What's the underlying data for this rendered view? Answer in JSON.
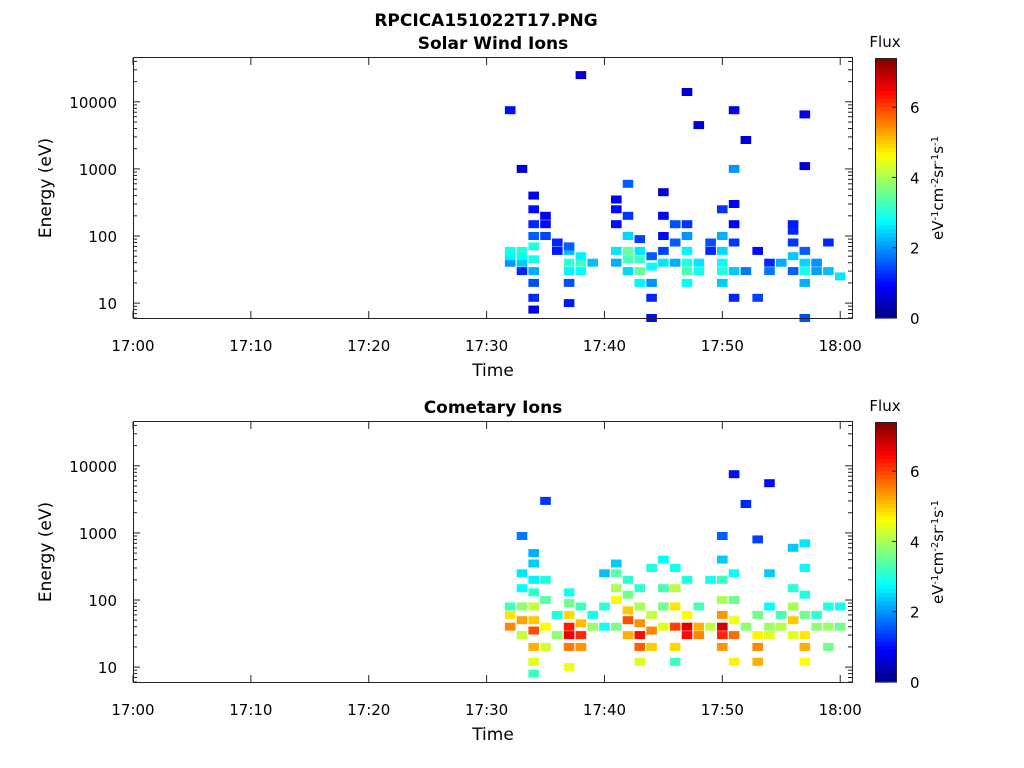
{
  "figure": {
    "title": "RPCICA151022T17.PNG"
  },
  "chart_data": [
    {
      "type": "heatmap",
      "title": "Solar Wind Ions",
      "xlabel": "Time",
      "ylabel": "Energy (eV)",
      "x_ticks": [
        "17:00",
        "17:10",
        "17:20",
        "17:30",
        "17:40",
        "17:50",
        "18:00"
      ],
      "xlim": [
        "17:00",
        "18:01"
      ],
      "y_scale": "log",
      "y_ticks": [
        10,
        100,
        1000,
        10000
      ],
      "ylim": [
        6,
        45000
      ],
      "colorbar": {
        "title": "Flux",
        "label": "eV-1cm-2sr-1s-1",
        "ticks": [
          0,
          2,
          4,
          6
        ],
        "range": [
          0,
          7.4
        ],
        "colormap": "jet"
      },
      "cells": [
        [
          "17:32",
          40,
          2.0
        ],
        [
          "17:32",
          50,
          2.7
        ],
        [
          "17:32",
          60,
          2.9
        ],
        [
          "17:32",
          7500,
          1.0
        ],
        [
          "17:33",
          30,
          1.2
        ],
        [
          "17:33",
          40,
          2.4
        ],
        [
          "17:33",
          50,
          2.8
        ],
        [
          "17:33",
          60,
          3.0
        ],
        [
          "17:33",
          1000,
          0.6
        ],
        [
          "17:34",
          8,
          0.7
        ],
        [
          "17:34",
          12,
          1.2
        ],
        [
          "17:34",
          20,
          1.5
        ],
        [
          "17:34",
          30,
          2.2
        ],
        [
          "17:34",
          45,
          2.9
        ],
        [
          "17:34",
          70,
          3.0
        ],
        [
          "17:34",
          100,
          1.6
        ],
        [
          "17:34",
          150,
          1.2
        ],
        [
          "17:34",
          250,
          1.0
        ],
        [
          "17:34",
          400,
          0.8
        ],
        [
          "17:35",
          100,
          1.4
        ],
        [
          "17:35",
          150,
          1.0
        ],
        [
          "17:35",
          200,
          0.9
        ],
        [
          "17:36",
          60,
          1.1
        ],
        [
          "17:36",
          80,
          1.2
        ],
        [
          "17:37",
          20,
          1.5
        ],
        [
          "17:37",
          30,
          2.7
        ],
        [
          "17:37",
          40,
          3.1
        ],
        [
          "17:37",
          60,
          2.3
        ],
        [
          "17:37",
          70,
          1.6
        ],
        [
          "17:37",
          10,
          1.1
        ],
        [
          "17:38",
          30,
          2.8
        ],
        [
          "17:38",
          40,
          3.2
        ],
        [
          "17:38",
          50,
          2.7
        ],
        [
          "17:38",
          25000,
          0.6
        ],
        [
          "17:39",
          40,
          2.3
        ],
        [
          "17:41",
          40,
          2.2
        ],
        [
          "17:41",
          60,
          2.6
        ],
        [
          "17:41",
          150,
          1.0
        ],
        [
          "17:41",
          250,
          1.0
        ],
        [
          "17:41",
          350,
          0.9
        ],
        [
          "17:42",
          30,
          2.5
        ],
        [
          "17:42",
          45,
          3.3
        ],
        [
          "17:42",
          60,
          3.5
        ],
        [
          "17:42",
          100,
          2.5
        ],
        [
          "17:42",
          200,
          1.3
        ],
        [
          "17:42",
          600,
          1.6
        ],
        [
          "17:43",
          20,
          2.7
        ],
        [
          "17:43",
          30,
          3.5
        ],
        [
          "17:43",
          45,
          3.2
        ],
        [
          "17:43",
          60,
          2.6
        ],
        [
          "17:43",
          90,
          1.4
        ],
        [
          "17:44",
          12,
          1.2
        ],
        [
          "17:44",
          20,
          2.0
        ],
        [
          "17:44",
          35,
          2.8
        ],
        [
          "17:44",
          50,
          1.6
        ],
        [
          "17:44",
          6,
          1.0
        ],
        [
          "17:45",
          40,
          2.6
        ],
        [
          "17:45",
          60,
          1.4
        ],
        [
          "17:45",
          100,
          1.0
        ],
        [
          "17:45",
          200,
          0.8
        ],
        [
          "17:45",
          450,
          0.6
        ],
        [
          "17:46",
          40,
          2.2
        ],
        [
          "17:46",
          80,
          1.6
        ],
        [
          "17:46",
          150,
          1.5
        ],
        [
          "17:47",
          20,
          2.8
        ],
        [
          "17:47",
          30,
          3.3
        ],
        [
          "17:47",
          40,
          3.0
        ],
        [
          "17:47",
          60,
          2.7
        ],
        [
          "17:47",
          100,
          2.0
        ],
        [
          "17:47",
          150,
          1.3
        ],
        [
          "17:47",
          14000,
          0.6
        ],
        [
          "17:48",
          30,
          2.9
        ],
        [
          "17:48",
          40,
          2.6
        ],
        [
          "17:48",
          4500,
          0.6
        ],
        [
          "17:49",
          60,
          1.2
        ],
        [
          "17:49",
          80,
          1.5
        ],
        [
          "17:50",
          20,
          2.4
        ],
        [
          "17:50",
          30,
          3.0
        ],
        [
          "17:50",
          40,
          2.8
        ],
        [
          "17:50",
          60,
          2.5
        ],
        [
          "17:50",
          100,
          2.2
        ],
        [
          "17:50",
          250,
          1.3
        ],
        [
          "17:51",
          12,
          1.2
        ],
        [
          "17:51",
          30,
          2.4
        ],
        [
          "17:51",
          80,
          1.3
        ],
        [
          "17:51",
          150,
          0.9
        ],
        [
          "17:51",
          300,
          0.9
        ],
        [
          "17:51",
          1000,
          2.0
        ],
        [
          "17:51",
          7500,
          0.8
        ],
        [
          "17:52",
          30,
          1.8
        ],
        [
          "17:52",
          2700,
          0.6
        ],
        [
          "17:53",
          60,
          1.0
        ],
        [
          "17:53",
          12,
          1.4
        ],
        [
          "17:54",
          30,
          1.8
        ],
        [
          "17:54",
          40,
          1.2
        ],
        [
          "17:55",
          40,
          2.2
        ],
        [
          "17:56",
          30,
          1.6
        ],
        [
          "17:56",
          50,
          2.4
        ],
        [
          "17:56",
          80,
          1.3
        ],
        [
          "17:56",
          120,
          1.2
        ],
        [
          "17:56",
          150,
          1.1
        ],
        [
          "17:57",
          20,
          2.2
        ],
        [
          "17:57",
          30,
          2.9
        ],
        [
          "17:57",
          40,
          2.5
        ],
        [
          "17:57",
          60,
          1.6
        ],
        [
          "17:57",
          6,
          1.5
        ],
        [
          "17:57",
          1100,
          0.6
        ],
        [
          "17:57",
          6500,
          0.8
        ],
        [
          "17:58",
          40,
          2.0
        ],
        [
          "17:58",
          30,
          2.1
        ],
        [
          "17:59",
          80,
          1.2
        ],
        [
          "17:59",
          30,
          2.3
        ],
        [
          "18:00",
          25,
          2.6
        ]
      ]
    },
    {
      "type": "heatmap",
      "title": "Cometary Ions",
      "xlabel": "Time",
      "ylabel": "Energy (eV)",
      "x_ticks": [
        "17:00",
        "17:10",
        "17:20",
        "17:30",
        "17:40",
        "17:50",
        "18:00"
      ],
      "xlim": [
        "17:00",
        "18:01"
      ],
      "y_scale": "log",
      "y_ticks": [
        10,
        100,
        1000,
        10000
      ],
      "ylim": [
        6,
        45000
      ],
      "colorbar": {
        "title": "Flux",
        "label": "eV-1cm-2sr-1s-1",
        "ticks": [
          0,
          2,
          4,
          6
        ],
        "range": [
          0,
          7.4
        ],
        "colormap": "jet"
      },
      "cells": [
        [
          "17:32",
          40,
          5.5
        ],
        [
          "17:32",
          60,
          4.8
        ],
        [
          "17:32",
          80,
          3.2
        ],
        [
          "17:33",
          30,
          4.2
        ],
        [
          "17:33",
          50,
          5.3
        ],
        [
          "17:33",
          80,
          3.8
        ],
        [
          "17:33",
          150,
          2.8
        ],
        [
          "17:33",
          250,
          2.6
        ],
        [
          "17:33",
          900,
          1.8
        ],
        [
          "17:34",
          12,
          4.4
        ],
        [
          "17:34",
          20,
          5.2
        ],
        [
          "17:34",
          35,
          5.9
        ],
        [
          "17:34",
          50,
          5.0
        ],
        [
          "17:34",
          80,
          4.2
        ],
        [
          "17:34",
          130,
          3.1
        ],
        [
          "17:34",
          200,
          2.7
        ],
        [
          "17:34",
          350,
          2.4
        ],
        [
          "17:34",
          500,
          2.2
        ],
        [
          "17:34",
          8,
          3.2
        ],
        [
          "17:35",
          20,
          4.3
        ],
        [
          "17:35",
          40,
          4.6
        ],
        [
          "17:35",
          100,
          3.4
        ],
        [
          "17:35",
          200,
          3.0
        ],
        [
          "17:35",
          3000,
          1.3
        ],
        [
          "17:36",
          30,
          3.8
        ],
        [
          "17:36",
          60,
          3.0
        ],
        [
          "17:37",
          20,
          5.6
        ],
        [
          "17:37",
          30,
          6.6
        ],
        [
          "17:37",
          40,
          6.3
        ],
        [
          "17:37",
          60,
          4.9
        ],
        [
          "17:37",
          90,
          3.6
        ],
        [
          "17:37",
          130,
          2.9
        ],
        [
          "17:37",
          10,
          4.5
        ],
        [
          "17:38",
          20,
          5.4
        ],
        [
          "17:38",
          30,
          6.2
        ],
        [
          "17:38",
          45,
          5.1
        ],
        [
          "17:38",
          80,
          3.2
        ],
        [
          "17:39",
          40,
          3.9
        ],
        [
          "17:39",
          60,
          2.9
        ],
        [
          "17:40",
          40,
          2.9
        ],
        [
          "17:40",
          80,
          3.1
        ],
        [
          "17:40",
          250,
          2.3
        ],
        [
          "17:41",
          40,
          3.7
        ],
        [
          "17:41",
          100,
          4.6
        ],
        [
          "17:41",
          150,
          4.0
        ],
        [
          "17:41",
          250,
          3.4
        ],
        [
          "17:41",
          350,
          2.4
        ],
        [
          "17:42",
          30,
          5.2
        ],
        [
          "17:42",
          50,
          5.9
        ],
        [
          "17:42",
          70,
          5.0
        ],
        [
          "17:42",
          120,
          3.6
        ],
        [
          "17:42",
          200,
          3.1
        ],
        [
          "17:43",
          20,
          5.8
        ],
        [
          "17:43",
          30,
          6.4
        ],
        [
          "17:43",
          45,
          5.4
        ],
        [
          "17:43",
          80,
          4.0
        ],
        [
          "17:43",
          150,
          3.1
        ],
        [
          "17:43",
          12,
          4.4
        ],
        [
          "17:44",
          20,
          5.0
        ],
        [
          "17:44",
          35,
          5.5
        ],
        [
          "17:44",
          60,
          4.2
        ],
        [
          "17:44",
          300,
          3.0
        ],
        [
          "17:45",
          40,
          4.4
        ],
        [
          "17:45",
          80,
          3.6
        ],
        [
          "17:45",
          150,
          3.3
        ],
        [
          "17:45",
          400,
          2.8
        ],
        [
          "17:46",
          20,
          4.9
        ],
        [
          "17:46",
          40,
          6.0
        ],
        [
          "17:46",
          80,
          4.8
        ],
        [
          "17:46",
          150,
          4.1
        ],
        [
          "17:46",
          300,
          2.9
        ],
        [
          "17:46",
          12,
          3.2
        ],
        [
          "17:47",
          30,
          6.4
        ],
        [
          "17:47",
          40,
          6.7
        ],
        [
          "17:47",
          60,
          4.6
        ],
        [
          "17:47",
          200,
          3.0
        ],
        [
          "17:48",
          30,
          5.5
        ],
        [
          "17:48",
          40,
          5.2
        ],
        [
          "17:48",
          80,
          3.3
        ],
        [
          "17:49",
          40,
          4.2
        ],
        [
          "17:49",
          200,
          2.9
        ],
        [
          "17:50",
          20,
          5.4
        ],
        [
          "17:50",
          30,
          6.2
        ],
        [
          "17:50",
          40,
          6.8
        ],
        [
          "17:50",
          60,
          5.4
        ],
        [
          "17:50",
          100,
          4.0
        ],
        [
          "17:50",
          200,
          3.2
        ],
        [
          "17:50",
          400,
          2.4
        ],
        [
          "17:50",
          900,
          1.6
        ],
        [
          "17:51",
          12,
          4.7
        ],
        [
          "17:51",
          30,
          5.7
        ],
        [
          "17:51",
          50,
          4.5
        ],
        [
          "17:51",
          100,
          3.6
        ],
        [
          "17:51",
          250,
          2.8
        ],
        [
          "17:51",
          7500,
          1.0
        ],
        [
          "17:52",
          40,
          3.8
        ],
        [
          "17:52",
          2700,
          1.2
        ],
        [
          "17:53",
          12,
          5.2
        ],
        [
          "17:53",
          20,
          5.5
        ],
        [
          "17:53",
          30,
          4.7
        ],
        [
          "17:53",
          60,
          3.6
        ],
        [
          "17:53",
          800,
          1.4
        ],
        [
          "17:54",
          30,
          4.4
        ],
        [
          "17:54",
          40,
          3.9
        ],
        [
          "17:54",
          80,
          2.8
        ],
        [
          "17:54",
          250,
          2.4
        ],
        [
          "17:54",
          5500,
          1.0
        ],
        [
          "17:55",
          40,
          4.1
        ],
        [
          "17:55",
          60,
          3.3
        ],
        [
          "17:56",
          30,
          4.4
        ],
        [
          "17:56",
          50,
          5.0
        ],
        [
          "17:56",
          80,
          4.0
        ],
        [
          "17:56",
          150,
          3.1
        ],
        [
          "17:56",
          600,
          2.4
        ],
        [
          "17:57",
          12,
          4.6
        ],
        [
          "17:57",
          20,
          5.2
        ],
        [
          "17:57",
          30,
          4.8
        ],
        [
          "17:57",
          60,
          3.6
        ],
        [
          "17:57",
          120,
          3.0
        ],
        [
          "17:57",
          300,
          2.8
        ],
        [
          "17:57",
          700,
          2.6
        ],
        [
          "17:58",
          40,
          3.8
        ],
        [
          "17:58",
          60,
          3.1
        ],
        [
          "17:59",
          20,
          3.6
        ],
        [
          "17:59",
          40,
          3.9
        ],
        [
          "17:59",
          80,
          3.0
        ],
        [
          "18:00",
          40,
          3.6
        ],
        [
          "18:00",
          80,
          2.9
        ]
      ]
    }
  ]
}
